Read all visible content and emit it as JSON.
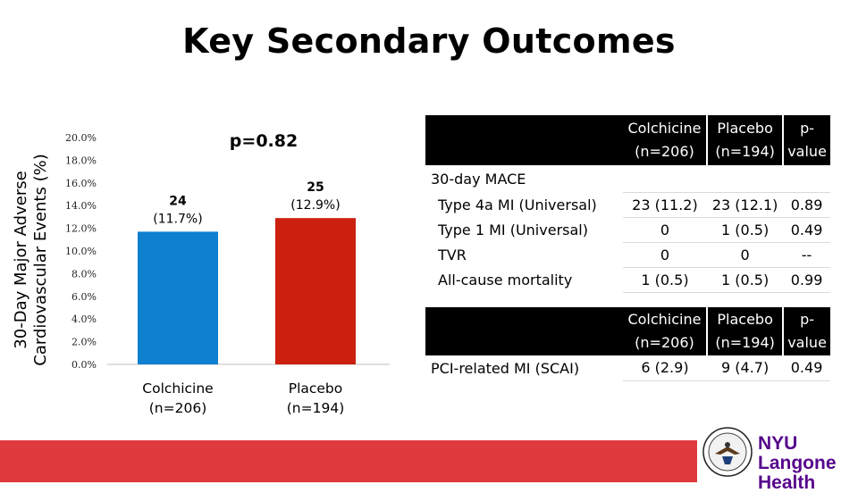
{
  "title": "Key Secondary Outcomes",
  "chart_data": {
    "type": "bar",
    "ylabel": "30-Day Major Adverse Cardiovascular Events (%)",
    "ylim": [
      0,
      20
    ],
    "yticks": [
      "0.0%",
      "2.0%",
      "4.0%",
      "6.0%",
      "8.0%",
      "10.0%",
      "12.0%",
      "14.0%",
      "16.0%",
      "18.0%",
      "20.0%"
    ],
    "categories": [
      "Colchicine (n=206)",
      "Placebo (n=194)"
    ],
    "values": [
      11.7,
      12.9
    ],
    "data_labels": [
      [
        "24",
        "(11.7%)"
      ],
      [
        "25",
        "(12.9%)"
      ]
    ],
    "colors": [
      "#0f7fcf",
      "#cc1f10"
    ],
    "annotation": "p=0.82"
  },
  "table1": {
    "headers": [
      [
        "Colchicine",
        "(n=206)"
      ],
      [
        "Placebo",
        "(n=194)"
      ],
      [
        "p-",
        "value"
      ]
    ],
    "section_label": "30-day MACE",
    "rows": [
      {
        "label": "Type 4a MI (Universal)",
        "colchicine": "23 (11.2)",
        "placebo": "23 (12.1)",
        "p": "0.89"
      },
      {
        "label": "Type 1 MI (Universal)",
        "colchicine": "0",
        "placebo": "1 (0.5)",
        "p": "0.49"
      },
      {
        "label": "TVR",
        "colchicine": "0",
        "placebo": "0",
        "p": "--"
      },
      {
        "label": "All-cause mortality",
        "colchicine": "1 (0.5)",
        "placebo": "1 (0.5)",
        "p": "0.99"
      }
    ]
  },
  "table2": {
    "headers": [
      [
        "Colchicine",
        "(n=206)"
      ],
      [
        "Placebo",
        "(n=194)"
      ],
      [
        "p-",
        "value"
      ]
    ],
    "rows": [
      {
        "label": "PCI-related MI (SCAI)",
        "colchicine": "6 (2.9)",
        "placebo": "9 (4.7)",
        "p": "0.49"
      }
    ]
  },
  "logo": {
    "line1": "NYU Langone",
    "line2": "Health"
  },
  "colors": {
    "footer": "#e03a3e",
    "nyu_purple": "#57068c"
  }
}
